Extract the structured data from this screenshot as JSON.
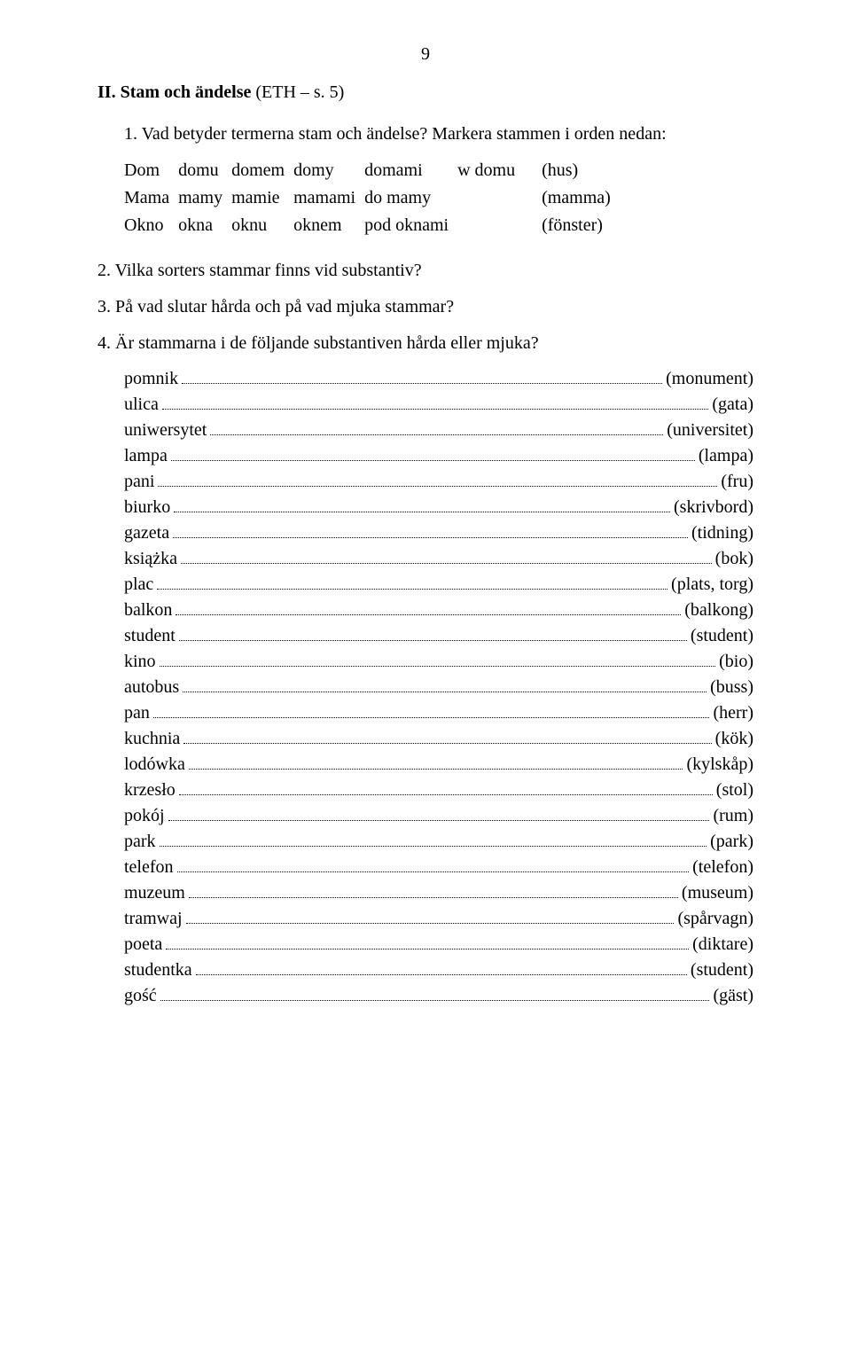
{
  "page_number": "9",
  "section": {
    "title_prefix": "II. Stam och ändelse",
    "title_suffix": " (ETH – s. 5)"
  },
  "q1": {
    "label": "1. Vad betyder termerna stam och ändelse? Markera stammen i orden nedan:",
    "table": {
      "rows": [
        {
          "c": [
            "Dom",
            "domu",
            "domem",
            "domy",
            "domami",
            "w domu"
          ],
          "trans": "(hus)"
        },
        {
          "c": [
            "Mama",
            "mamy",
            "mamie",
            "mamami",
            "do mamy",
            ""
          ],
          "trans": "(mamma)"
        },
        {
          "c": [
            "Okno",
            "okna",
            "oknu",
            "oknem",
            "pod oknami",
            ""
          ],
          "trans": "(fönster)"
        }
      ]
    }
  },
  "q2": {
    "label": "2. Vilka sorters stammar finns vid substantiv?"
  },
  "q3": {
    "label": "3. På vad slutar hårda och på vad mjuka stammar?"
  },
  "q4": {
    "label": "4. Är stammarna i de följande substantiven hårda eller mjuka?",
    "items": [
      {
        "word": "pomnik",
        "trans": "(monument)"
      },
      {
        "word": "ulica",
        "trans": "(gata)"
      },
      {
        "word": "uniwersytet",
        "trans": "(universitet)"
      },
      {
        "word": "lampa",
        "trans": "(lampa)"
      },
      {
        "word": "pani",
        "trans": "(fru)"
      },
      {
        "word": "biurko",
        "trans": "(skrivbord)"
      },
      {
        "word": "gazeta",
        "trans": "(tidning)"
      },
      {
        "word": "książka",
        "trans": "(bok)"
      },
      {
        "word": "plac",
        "trans": "(plats, torg)"
      },
      {
        "word": "balkon",
        "trans": "(balkong)"
      },
      {
        "word": "student",
        "trans": "(student)"
      },
      {
        "word": "kino",
        "trans": "(bio)"
      },
      {
        "word": "autobus",
        "trans": "(buss)"
      },
      {
        "word": "pan",
        "trans": "(herr)"
      },
      {
        "word": "kuchnia",
        "trans": "(kök)"
      },
      {
        "word": "lodówka",
        "trans": "(kylskåp)"
      },
      {
        "word": "krzesło",
        "trans": "(stol)"
      },
      {
        "word": "pokój",
        "trans": "(rum)"
      },
      {
        "word": "park",
        "trans": "(park)"
      },
      {
        "word": "telefon",
        "trans": "(telefon)"
      },
      {
        "word": "muzeum",
        "trans": "(museum)"
      },
      {
        "word": "tramwaj",
        "trans": "(spårvagn)"
      },
      {
        "word": "poeta",
        "trans": "(diktare)"
      },
      {
        "word": "studentka",
        "trans": "(student)"
      },
      {
        "word": "gość",
        "trans": "(gäst)"
      }
    ]
  }
}
